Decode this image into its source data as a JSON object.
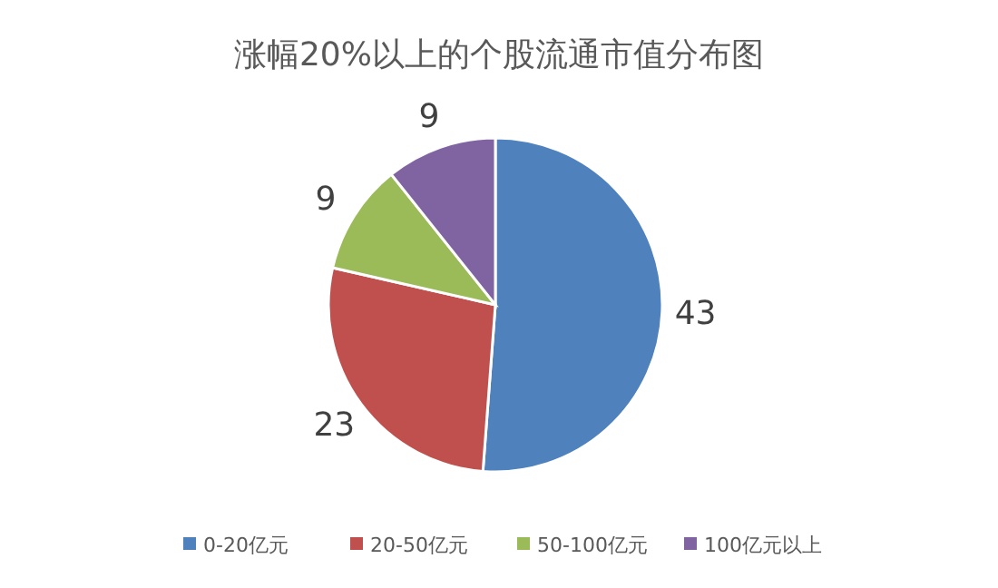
{
  "chart_data": {
    "type": "pie",
    "title": "涨幅20%以上的个股流通市值分布图",
    "categories": [
      "0-20亿元",
      "20-50亿元",
      "50-100亿元",
      "100亿元以上"
    ],
    "values": [
      43,
      23,
      9,
      9
    ],
    "colors": [
      "#4f81bd",
      "#c0504d",
      "#9bbb59",
      "#8064a2"
    ],
    "data_labels": true,
    "legend": "bottom"
  }
}
